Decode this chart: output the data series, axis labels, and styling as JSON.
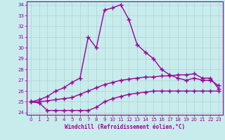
{
  "xlabel": "Windchill (Refroidissement éolien,°C)",
  "background_color": "#c8ecec",
  "grid_color": "#b0d0d0",
  "line_color": "#990099",
  "xlim": [
    -0.5,
    23.5
  ],
  "ylim": [
    23.8,
    34.3
  ],
  "yticks": [
    24,
    25,
    26,
    27,
    28,
    29,
    30,
    31,
    32,
    33,
    34
  ],
  "xticks": [
    0,
    1,
    2,
    3,
    4,
    5,
    6,
    7,
    8,
    9,
    10,
    11,
    12,
    13,
    14,
    15,
    16,
    17,
    18,
    19,
    20,
    21,
    22,
    23
  ],
  "line1_x": [
    0,
    1,
    2,
    3,
    4,
    5,
    6,
    7,
    8,
    9,
    10,
    11,
    12,
    13,
    14,
    15,
    16,
    17,
    18,
    19,
    20,
    21,
    22,
    23
  ],
  "line1_y": [
    25.0,
    25.2,
    25.5,
    26.0,
    26.3,
    26.8,
    27.2,
    31.0,
    30.0,
    33.5,
    33.7,
    34.0,
    32.6,
    30.3,
    29.6,
    29.0,
    28.0,
    27.5,
    27.2,
    27.0,
    27.2,
    27.0,
    27.0,
    26.5
  ],
  "line2_x": [
    0,
    1,
    2,
    3,
    4,
    5,
    6,
    7,
    8,
    9,
    10,
    11,
    12,
    13,
    14,
    15,
    16,
    17,
    18,
    19,
    20,
    21,
    22,
    23
  ],
  "line2_y": [
    25.0,
    25.0,
    25.1,
    25.2,
    25.3,
    25.4,
    25.7,
    26.0,
    26.3,
    26.6,
    26.8,
    27.0,
    27.1,
    27.2,
    27.3,
    27.3,
    27.4,
    27.4,
    27.5,
    27.5,
    27.6,
    27.2,
    27.2,
    26.2
  ],
  "line3_x": [
    0,
    1,
    2,
    3,
    4,
    5,
    6,
    7,
    8,
    9,
    10,
    11,
    12,
    13,
    14,
    15,
    16,
    17,
    18,
    19,
    20,
    21,
    22,
    23
  ],
  "line3_y": [
    25.0,
    24.9,
    24.2,
    24.2,
    24.2,
    24.2,
    24.2,
    24.2,
    24.5,
    25.0,
    25.3,
    25.5,
    25.7,
    25.8,
    25.9,
    26.0,
    26.0,
    26.0,
    26.0,
    26.0,
    26.0,
    26.0,
    26.0,
    26.0
  ]
}
